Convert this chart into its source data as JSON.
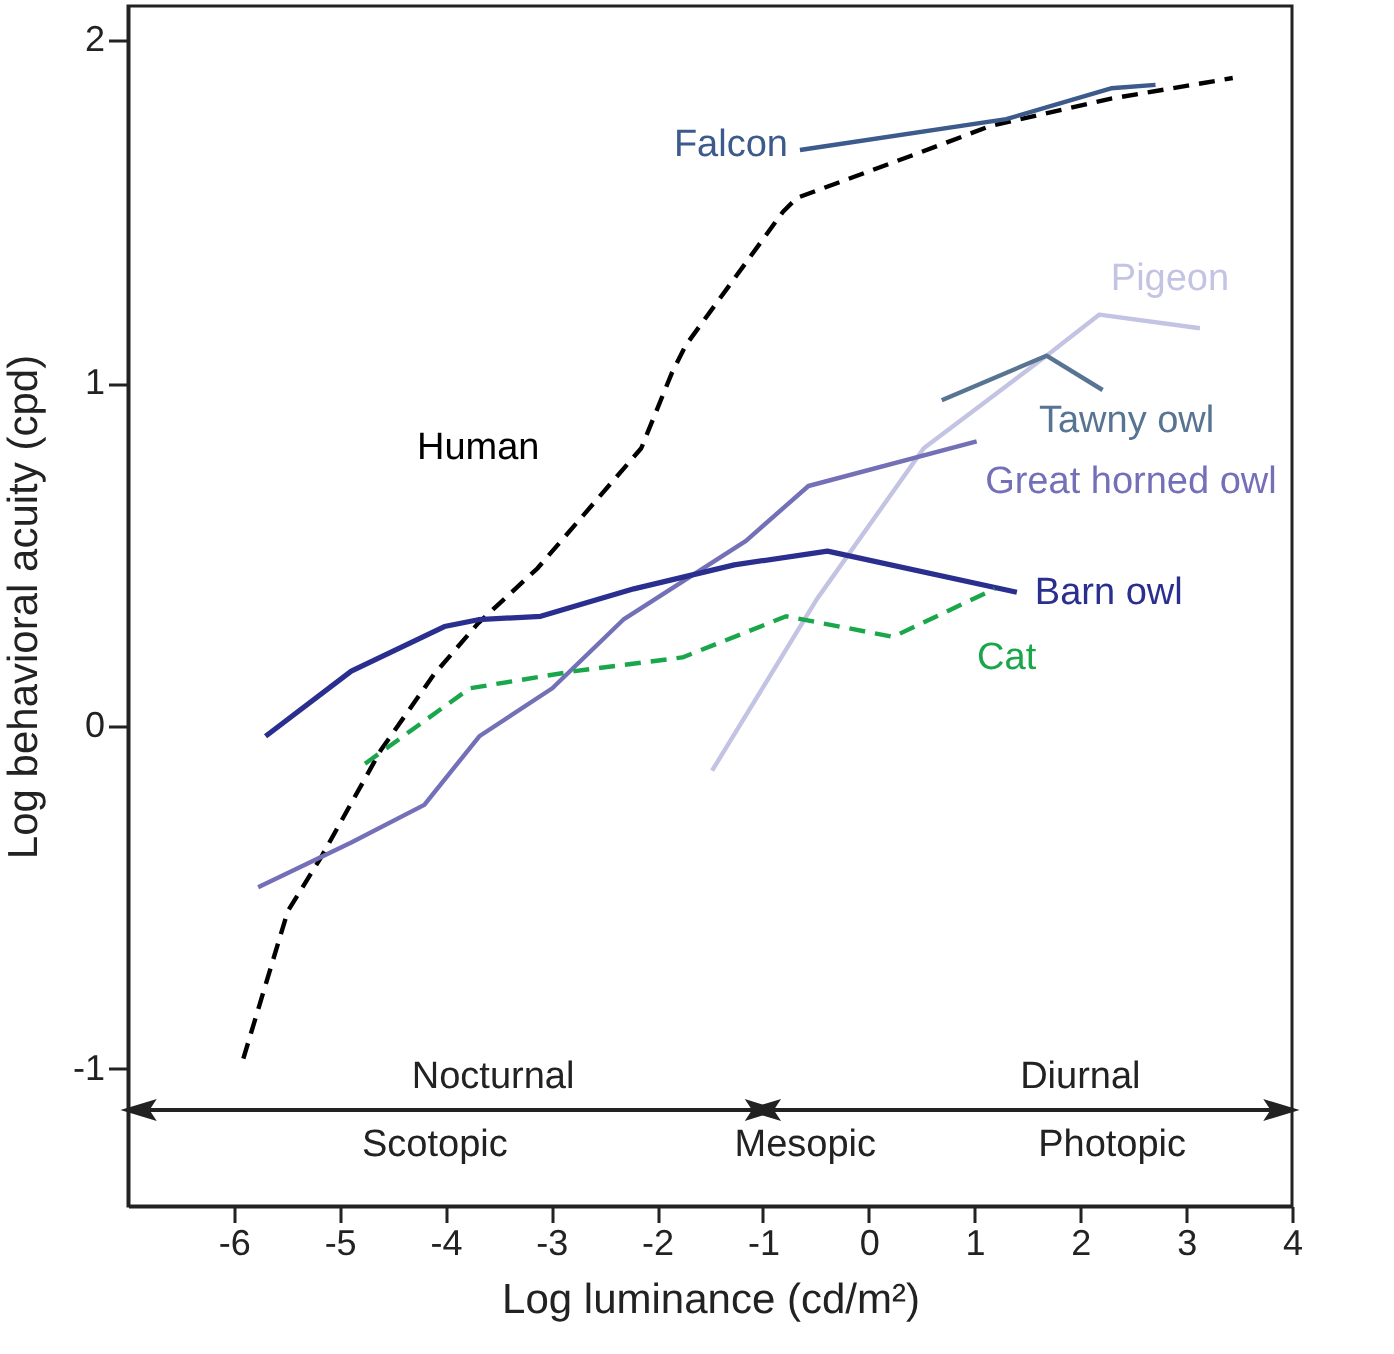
{
  "chart_data": {
    "type": "line",
    "xlabel": "Log luminance (cd/m²)",
    "ylabel": "Log behavioral acuity (cpd)",
    "xlim": [
      -7,
      4
    ],
    "xticks": [
      -6,
      -5,
      -4,
      -3,
      -2,
      -1,
      0,
      1,
      2,
      3,
      4
    ],
    "ylim": [
      -1.4,
      2.1
    ],
    "yticks": [
      -1,
      0,
      1,
      2
    ],
    "grid": false,
    "marker": "none",
    "series": [
      {
        "name": "Human",
        "color": "#000000",
        "line_style": "dashed",
        "x": [
          -5.91,
          -5.49,
          -5.17,
          -4.61,
          -4.11,
          -3.69,
          -3.13,
          -2.15,
          -1.86,
          -1.73,
          -0.81,
          -0.68,
          0.46,
          1.15,
          2.29,
          3.44
        ],
        "values": [
          -0.97,
          -0.54,
          -0.38,
          -0.07,
          0.15,
          0.3,
          0.46,
          0.81,
          1.03,
          1.11,
          1.5,
          1.54,
          1.67,
          1.75,
          1.83,
          1.89
        ]
      },
      {
        "name": "Falcon",
        "color": "#3d5a8c",
        "x": [
          -0.65,
          1.3,
          2.29,
          2.71
        ],
        "values": [
          1.68,
          1.77,
          1.86,
          1.87
        ]
      },
      {
        "name": "Pigeon",
        "color": "#c3c3e3",
        "x": [
          -1.48,
          -0.49,
          0.52,
          1.68,
          2.18,
          3.13
        ],
        "values": [
          -0.13,
          0.37,
          0.81,
          1.08,
          1.2,
          1.16
        ]
      },
      {
        "name": "Tawny owl",
        "color": "#587493",
        "x": [
          0.69,
          1.68,
          2.21
        ],
        "values": [
          0.95,
          1.08,
          0.98
        ]
      },
      {
        "name": "Great horned owl",
        "color": "#7470b8",
        "x": [
          -5.77,
          -4.89,
          -4.2,
          -3.68,
          -2.99,
          -2.32,
          -1.16,
          -0.57,
          1.02
        ],
        "values": [
          -0.47,
          -0.34,
          -0.23,
          -0.03,
          0.11,
          0.31,
          0.54,
          0.7,
          0.83
        ]
      },
      {
        "name": "Barn owl",
        "color": "#2a2f8f",
        "x": [
          -5.7,
          -4.89,
          -4.01,
          -3.69,
          -3.1,
          -2.22,
          -1.27,
          -0.39,
          1.4
        ],
        "values": [
          -0.03,
          0.16,
          0.29,
          0.31,
          0.32,
          0.4,
          0.47,
          0.51,
          0.39
        ]
      },
      {
        "name": "Cat",
        "color": "#1aa64a",
        "line_style": "dashed",
        "x": [
          -4.76,
          -3.77,
          -2.78,
          -1.76,
          -0.78,
          0.23,
          1.19
        ],
        "values": [
          -0.11,
          0.11,
          0.16,
          0.2,
          0.32,
          0.26,
          0.4
        ]
      }
    ],
    "annotations": [
      "Nocturnal",
      "Diurnal",
      "Scotopic",
      "Mesopic",
      "Photopic"
    ]
  }
}
